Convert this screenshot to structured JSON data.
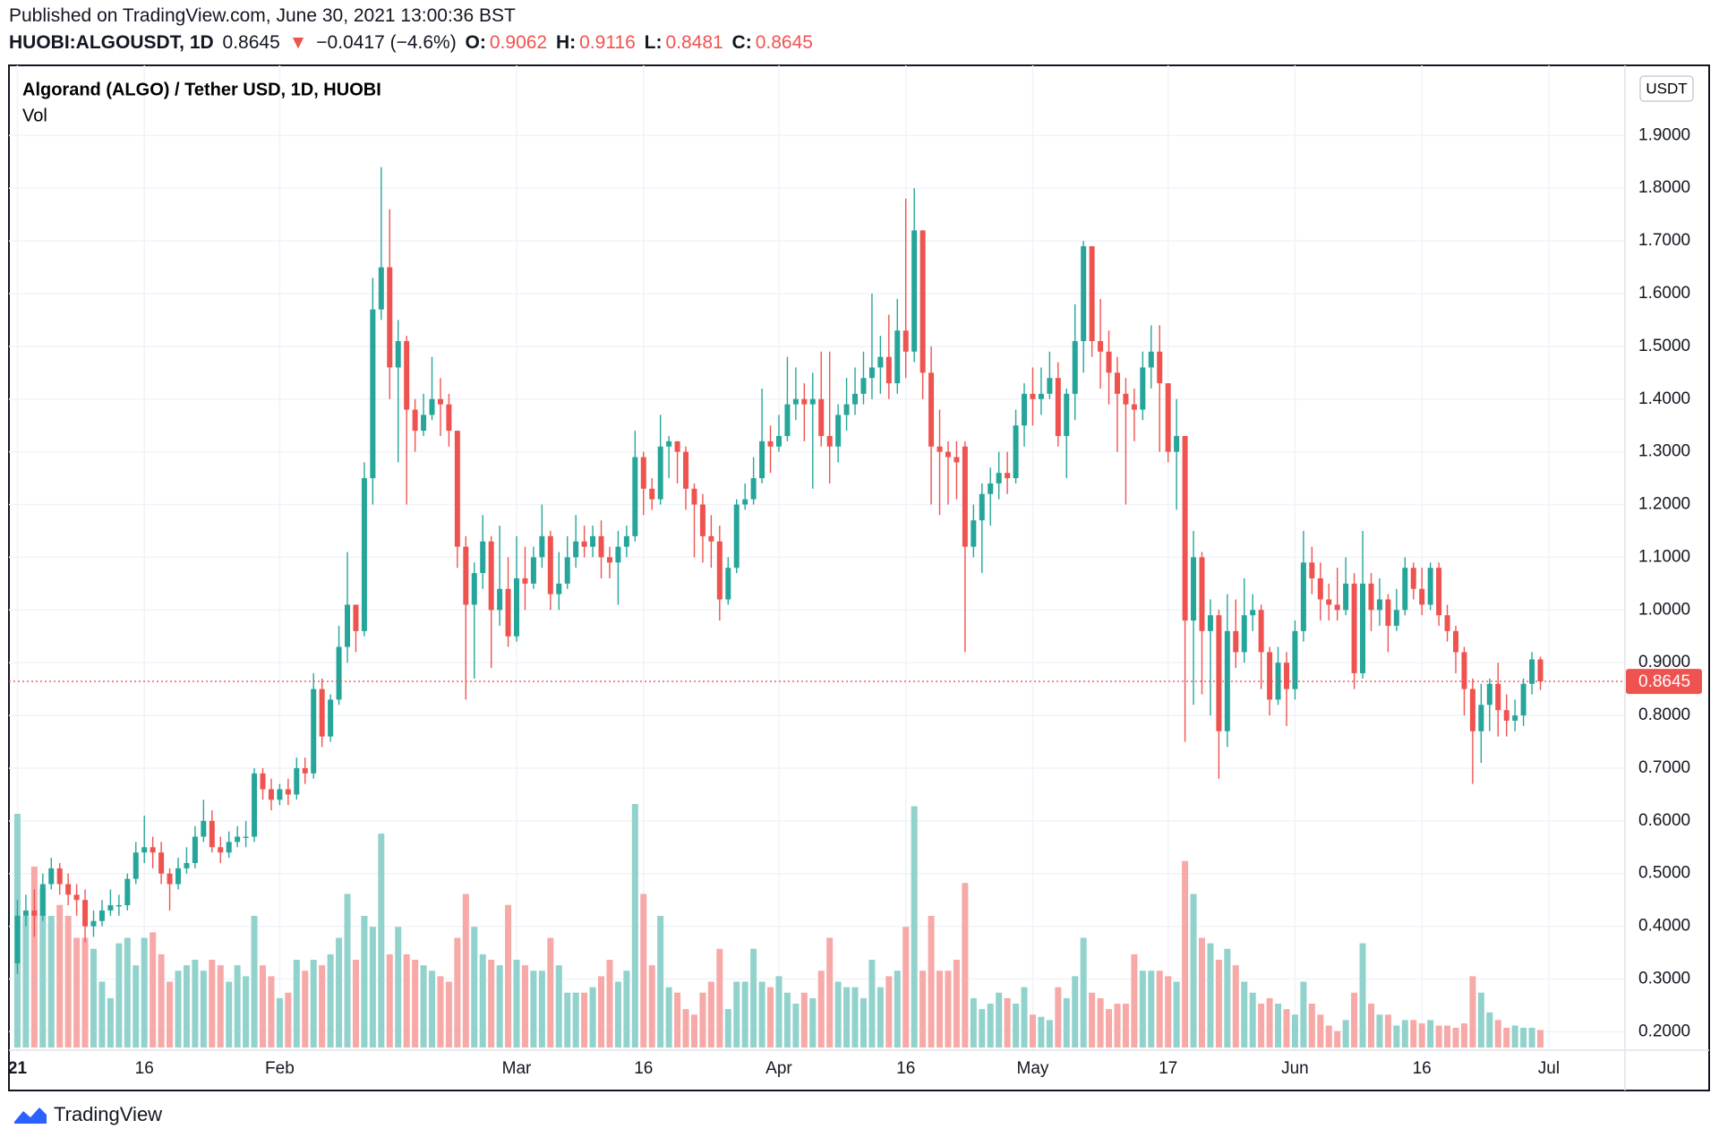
{
  "header": {
    "published": "Published on TradingView.com, June 30, 2021 13:00:36 BST",
    "symbol": "HUOBI:ALGOUSDT, 1D",
    "last": "0.8645",
    "arrow": "▼",
    "change": "−0.0417 (−4.6%)",
    "ohlc": [
      {
        "key": "O:",
        "value": "0.9062"
      },
      {
        "key": "H:",
        "value": "0.9116"
      },
      {
        "key": "L:",
        "value": "0.8481"
      },
      {
        "key": "C:",
        "value": "0.8645"
      }
    ]
  },
  "footer": {
    "brand": "TradingView"
  },
  "chart_data": {
    "type": "candlestick",
    "title": "Algorand (ALGO) / Tether USD, 1D, HUOBI",
    "volume_label": "Vol",
    "currency": "USDT",
    "up_color": "#26a69a",
    "down_color": "#ef5350",
    "volume_up_color": "#92d2cc",
    "volume_down_color": "#f7a9a7",
    "last_price": {
      "value": 0.8645,
      "label": "0.8645"
    },
    "xlim": [
      "2020-12-31",
      "2021-07-10"
    ],
    "xticks": [
      {
        "value": "2021-01-01",
        "label": "21"
      },
      {
        "value": "2021-01-16",
        "label": "16"
      },
      {
        "value": "2021-02-01",
        "label": "Feb"
      },
      {
        "value": "2021-03-01",
        "label": "Mar"
      },
      {
        "value": "2021-03-16",
        "label": "16"
      },
      {
        "value": "2021-04-01",
        "label": "Apr"
      },
      {
        "value": "2021-04-16",
        "label": "16"
      },
      {
        "value": "2021-05-01",
        "label": "May"
      },
      {
        "value": "2021-05-17",
        "label": "17"
      },
      {
        "value": "2021-06-01",
        "label": "Jun"
      },
      {
        "value": "2021-06-16",
        "label": "16"
      },
      {
        "value": "2021-07-01",
        "label": "Jul"
      }
    ],
    "ylim": [
      0.165,
      2.033
    ],
    "yticks": [
      {
        "value": 0.2,
        "label": "0.2000"
      },
      {
        "value": 0.3,
        "label": "0.3000"
      },
      {
        "value": 0.4,
        "label": "0.4000"
      },
      {
        "value": 0.5,
        "label": "0.5000"
      },
      {
        "value": 0.6,
        "label": "0.6000"
      },
      {
        "value": 0.7,
        "label": "0.7000"
      },
      {
        "value": 0.8,
        "label": "0.8000"
      },
      {
        "value": 0.9,
        "label": "0.9000"
      },
      {
        "value": 1.0,
        "label": "1.0000"
      },
      {
        "value": 1.1,
        "label": "1.1000"
      },
      {
        "value": 1.2,
        "label": "1.2000"
      },
      {
        "value": 1.3,
        "label": "1.3000"
      },
      {
        "value": 1.4,
        "label": "1.4000"
      },
      {
        "value": 1.5,
        "label": "1.5000"
      },
      {
        "value": 1.6,
        "label": "1.6000"
      },
      {
        "value": 1.7,
        "label": "1.7000"
      },
      {
        "value": 1.8,
        "label": "1.8000"
      },
      {
        "value": 1.9,
        "label": "1.9000"
      }
    ],
    "x": [
      "2021-01-01",
      "2021-01-02",
      "2021-01-03",
      "2021-01-04",
      "2021-01-05",
      "2021-01-06",
      "2021-01-07",
      "2021-01-08",
      "2021-01-09",
      "2021-01-10",
      "2021-01-11",
      "2021-01-12",
      "2021-01-13",
      "2021-01-14",
      "2021-01-15",
      "2021-01-16",
      "2021-01-17",
      "2021-01-18",
      "2021-01-19",
      "2021-01-20",
      "2021-01-21",
      "2021-01-22",
      "2021-01-23",
      "2021-01-24",
      "2021-01-25",
      "2021-01-26",
      "2021-01-27",
      "2021-01-28",
      "2021-01-29",
      "2021-01-30",
      "2021-01-31",
      "2021-02-01",
      "2021-02-02",
      "2021-02-03",
      "2021-02-04",
      "2021-02-05",
      "2021-02-06",
      "2021-02-07",
      "2021-02-08",
      "2021-02-09",
      "2021-02-10",
      "2021-02-11",
      "2021-02-12",
      "2021-02-13",
      "2021-02-14",
      "2021-02-15",
      "2021-02-16",
      "2021-02-17",
      "2021-02-18",
      "2021-02-19",
      "2021-02-20",
      "2021-02-21",
      "2021-02-22",
      "2021-02-23",
      "2021-02-24",
      "2021-02-25",
      "2021-02-26",
      "2021-02-27",
      "2021-02-28",
      "2021-03-01",
      "2021-03-02",
      "2021-03-03",
      "2021-03-04",
      "2021-03-05",
      "2021-03-06",
      "2021-03-07",
      "2021-03-08",
      "2021-03-09",
      "2021-03-10",
      "2021-03-11",
      "2021-03-12",
      "2021-03-13",
      "2021-03-14",
      "2021-03-15",
      "2021-03-16",
      "2021-03-17",
      "2021-03-18",
      "2021-03-19",
      "2021-03-20",
      "2021-03-21",
      "2021-03-22",
      "2021-03-23",
      "2021-03-24",
      "2021-03-25",
      "2021-03-26",
      "2021-03-27",
      "2021-03-28",
      "2021-03-29",
      "2021-03-30",
      "2021-03-31",
      "2021-04-01",
      "2021-04-02",
      "2021-04-03",
      "2021-04-04",
      "2021-04-05",
      "2021-04-06",
      "2021-04-07",
      "2021-04-08",
      "2021-04-09",
      "2021-04-10",
      "2021-04-11",
      "2021-04-12",
      "2021-04-13",
      "2021-04-14",
      "2021-04-15",
      "2021-04-16",
      "2021-04-17",
      "2021-04-18",
      "2021-04-19",
      "2021-04-20",
      "2021-04-21",
      "2021-04-22",
      "2021-04-23",
      "2021-04-24",
      "2021-04-25",
      "2021-04-26",
      "2021-04-27",
      "2021-04-28",
      "2021-04-29",
      "2021-04-30",
      "2021-05-01",
      "2021-05-02",
      "2021-05-03",
      "2021-05-04",
      "2021-05-05",
      "2021-05-06",
      "2021-05-07",
      "2021-05-08",
      "2021-05-09",
      "2021-05-10",
      "2021-05-11",
      "2021-05-12",
      "2021-05-13",
      "2021-05-14",
      "2021-05-15",
      "2021-05-16",
      "2021-05-17",
      "2021-05-18",
      "2021-05-19",
      "2021-05-20",
      "2021-05-21",
      "2021-05-22",
      "2021-05-23",
      "2021-05-24",
      "2021-05-25",
      "2021-05-26",
      "2021-05-27",
      "2021-05-28",
      "2021-05-29",
      "2021-05-30",
      "2021-05-31",
      "2021-06-01",
      "2021-06-02",
      "2021-06-03",
      "2021-06-04",
      "2021-06-05",
      "2021-06-06",
      "2021-06-07",
      "2021-06-08",
      "2021-06-09",
      "2021-06-10",
      "2021-06-11",
      "2021-06-12",
      "2021-06-13",
      "2021-06-14",
      "2021-06-15",
      "2021-06-16",
      "2021-06-17",
      "2021-06-18",
      "2021-06-19",
      "2021-06-20",
      "2021-06-21",
      "2021-06-22",
      "2021-06-23",
      "2021-06-24",
      "2021-06-25",
      "2021-06-26",
      "2021-06-27",
      "2021-06-28",
      "2021-06-29",
      "2021-06-30"
    ],
    "open": [
      0.33,
      0.42,
      0.43,
      0.42,
      0.48,
      0.51,
      0.48,
      0.46,
      0.45,
      0.4,
      0.41,
      0.43,
      0.44,
      0.44,
      0.49,
      0.54,
      0.55,
      0.54,
      0.5,
      0.48,
      0.51,
      0.52,
      0.57,
      0.6,
      0.55,
      0.54,
      0.56,
      0.57,
      0.57,
      0.69,
      0.66,
      0.64,
      0.66,
      0.65,
      0.7,
      0.69,
      0.85,
      0.76,
      0.83,
      0.93,
      1.01,
      0.96,
      1.25,
      1.57,
      1.65,
      1.46,
      1.51,
      1.38,
      1.34,
      1.37,
      1.4,
      1.39,
      1.34,
      1.12,
      1.01,
      1.07,
      1.13,
      1.0,
      1.04,
      0.95,
      1.06,
      1.05,
      1.1,
      1.14,
      1.03,
      1.05,
      1.1,
      1.13,
      1.12,
      1.14,
      1.1,
      1.09,
      1.12,
      1.14,
      1.29,
      1.23,
      1.21,
      1.31,
      1.32,
      1.3,
      1.23,
      1.2,
      1.14,
      1.13,
      1.02,
      1.08,
      1.2,
      1.21,
      1.25,
      1.32,
      1.31,
      1.33,
      1.39,
      1.4,
      1.39,
      1.4,
      1.33,
      1.31,
      1.37,
      1.39,
      1.41,
      1.44,
      1.46,
      1.48,
      1.43,
      1.53,
      1.49,
      1.72,
      1.45,
      1.31,
      1.3,
      1.29,
      1.31,
      1.12,
      1.17,
      1.22,
      1.24,
      1.26,
      1.25,
      1.35,
      1.41,
      1.4,
      1.41,
      1.44,
      1.33,
      1.41,
      1.51,
      1.69,
      1.51,
      1.49,
      1.45,
      1.41,
      1.39,
      1.38,
      1.46,
      1.49,
      1.43,
      1.3,
      1.33,
      0.98,
      1.1,
      0.96,
      0.99,
      0.77,
      0.96,
      0.92,
      0.99,
      1.0,
      0.92,
      0.83,
      0.9,
      0.85,
      0.96,
      1.09,
      1.06,
      1.02,
      1.01,
      1.0,
      1.05,
      0.88,
      1.05,
      1.0,
      1.02,
      0.97,
      1.0,
      1.08,
      1.04,
      1.01,
      1.08,
      0.99,
      0.96,
      0.92,
      0.85,
      0.77,
      0.82,
      0.86,
      0.81,
      0.79,
      0.8,
      0.86,
      0.9062
    ],
    "high": [
      0.45,
      0.46,
      0.47,
      0.5,
      0.53,
      0.52,
      0.5,
      0.48,
      0.47,
      0.43,
      0.45,
      0.47,
      0.46,
      0.5,
      0.56,
      0.61,
      0.57,
      0.56,
      0.51,
      0.53,
      0.55,
      0.59,
      0.64,
      0.62,
      0.57,
      0.58,
      0.59,
      0.6,
      0.7,
      0.7,
      0.68,
      0.67,
      0.68,
      0.72,
      0.72,
      0.88,
      0.87,
      0.84,
      0.97,
      1.11,
      1.01,
      1.28,
      1.63,
      1.84,
      1.76,
      1.55,
      1.52,
      1.4,
      1.41,
      1.48,
      1.44,
      1.41,
      1.34,
      1.14,
      1.09,
      1.18,
      1.14,
      1.16,
      1.1,
      1.14,
      1.12,
      1.12,
      1.2,
      1.15,
      1.11,
      1.14,
      1.18,
      1.16,
      1.16,
      1.17,
      1.12,
      1.15,
      1.16,
      1.34,
      1.3,
      1.25,
      1.37,
      1.33,
      1.32,
      1.31,
      1.24,
      1.22,
      1.18,
      1.16,
      1.1,
      1.21,
      1.24,
      1.29,
      1.42,
      1.35,
      1.37,
      1.48,
      1.46,
      1.43,
      1.45,
      1.49,
      1.49,
      1.39,
      1.44,
      1.46,
      1.49,
      1.6,
      1.52,
      1.56,
      1.59,
      1.78,
      1.8,
      1.72,
      1.5,
      1.38,
      1.32,
      1.32,
      1.32,
      1.2,
      1.24,
      1.27,
      1.3,
      1.3,
      1.38,
      1.43,
      1.46,
      1.46,
      1.49,
      1.47,
      1.42,
      1.58,
      1.7,
      1.69,
      1.59,
      1.53,
      1.48,
      1.44,
      1.42,
      1.49,
      1.54,
      1.54,
      1.43,
      1.4,
      1.33,
      1.15,
      1.11,
      1.02,
      1.0,
      1.03,
      1.02,
      1.06,
      1.03,
      1.01,
      0.93,
      0.93,
      0.92,
      0.98,
      1.15,
      1.12,
      1.09,
      1.05,
      1.08,
      1.1,
      1.07,
      1.15,
      1.07,
      1.06,
      1.03,
      1.04,
      1.1,
      1.09,
      1.08,
      1.09,
      1.09,
      1.01,
      0.97,
      0.93,
      0.87,
      0.86,
      0.87,
      0.9,
      0.84,
      0.83,
      0.87,
      0.92,
      0.9116
    ],
    "low": [
      0.31,
      0.4,
      0.38,
      0.41,
      0.47,
      0.46,
      0.44,
      0.42,
      0.37,
      0.38,
      0.4,
      0.42,
      0.42,
      0.43,
      0.48,
      0.52,
      0.51,
      0.48,
      0.43,
      0.47,
      0.5,
      0.51,
      0.56,
      0.54,
      0.52,
      0.53,
      0.55,
      0.55,
      0.56,
      0.64,
      0.62,
      0.63,
      0.63,
      0.64,
      0.67,
      0.68,
      0.74,
      0.75,
      0.82,
      0.9,
      0.92,
      0.95,
      1.2,
      1.55,
      1.4,
      1.28,
      1.2,
      1.3,
      1.33,
      1.36,
      1.33,
      1.31,
      1.08,
      0.83,
      0.87,
      1.04,
      0.89,
      0.97,
      0.93,
      0.94,
      1.0,
      1.04,
      1.08,
      1.0,
      1.0,
      1.04,
      1.08,
      1.1,
      1.1,
      1.06,
      1.06,
      1.01,
      1.1,
      1.13,
      1.18,
      1.19,
      1.2,
      1.25,
      1.24,
      1.19,
      1.1,
      1.09,
      1.08,
      0.98,
      1.01,
      1.07,
      1.19,
      1.2,
      1.24,
      1.26,
      1.3,
      1.32,
      1.36,
      1.32,
      1.23,
      1.31,
      1.24,
      1.28,
      1.34,
      1.37,
      1.39,
      1.4,
      1.41,
      1.4,
      1.41,
      1.44,
      1.47,
      1.4,
      1.2,
      1.18,
      1.2,
      1.21,
      0.92,
      1.1,
      1.07,
      1.16,
      1.21,
      1.22,
      1.24,
      1.31,
      1.35,
      1.37,
      1.4,
      1.31,
      1.25,
      1.36,
      1.45,
      1.48,
      1.42,
      1.39,
      1.3,
      1.2,
      1.32,
      1.36,
      1.42,
      1.3,
      1.28,
      1.19,
      0.75,
      0.82,
      0.84,
      0.8,
      0.68,
      0.74,
      0.89,
      0.9,
      0.96,
      0.85,
      0.8,
      0.82,
      0.78,
      0.83,
      0.94,
      1.03,
      0.98,
      0.98,
      0.98,
      0.99,
      0.85,
      0.87,
      0.96,
      0.97,
      0.92,
      0.96,
      0.99,
      1.02,
      0.99,
      1.0,
      0.97,
      0.94,
      0.88,
      0.8,
      0.67,
      0.71,
      0.77,
      0.76,
      0.76,
      0.77,
      0.78,
      0.84,
      0.8481
    ],
    "close": [
      0.42,
      0.43,
      0.42,
      0.48,
      0.51,
      0.48,
      0.46,
      0.45,
      0.4,
      0.41,
      0.43,
      0.44,
      0.44,
      0.49,
      0.54,
      0.55,
      0.54,
      0.5,
      0.48,
      0.51,
      0.52,
      0.57,
      0.6,
      0.55,
      0.54,
      0.56,
      0.57,
      0.57,
      0.69,
      0.66,
      0.64,
      0.66,
      0.65,
      0.7,
      0.69,
      0.85,
      0.76,
      0.83,
      0.93,
      1.01,
      0.96,
      1.25,
      1.57,
      1.65,
      1.46,
      1.51,
      1.38,
      1.34,
      1.37,
      1.4,
      1.39,
      1.34,
      1.12,
      1.01,
      1.07,
      1.13,
      1.0,
      1.04,
      0.95,
      1.06,
      1.05,
      1.1,
      1.14,
      1.03,
      1.05,
      1.1,
      1.13,
      1.12,
      1.14,
      1.1,
      1.09,
      1.12,
      1.14,
      1.29,
      1.23,
      1.21,
      1.31,
      1.32,
      1.3,
      1.23,
      1.2,
      1.14,
      1.13,
      1.02,
      1.08,
      1.2,
      1.21,
      1.25,
      1.32,
      1.31,
      1.33,
      1.39,
      1.4,
      1.39,
      1.4,
      1.33,
      1.31,
      1.37,
      1.39,
      1.41,
      1.44,
      1.46,
      1.48,
      1.43,
      1.53,
      1.49,
      1.72,
      1.45,
      1.31,
      1.3,
      1.29,
      1.28,
      1.12,
      1.17,
      1.22,
      1.24,
      1.26,
      1.25,
      1.35,
      1.41,
      1.4,
      1.41,
      1.44,
      1.33,
      1.41,
      1.51,
      1.69,
      1.51,
      1.49,
      1.45,
      1.41,
      1.39,
      1.38,
      1.46,
      1.49,
      1.43,
      1.3,
      1.33,
      0.98,
      1.1,
      0.96,
      0.99,
      0.77,
      0.96,
      0.92,
      0.99,
      1.0,
      0.92,
      0.83,
      0.9,
      0.85,
      0.96,
      1.09,
      1.06,
      1.02,
      1.01,
      1.0,
      1.05,
      0.88,
      1.05,
      1.0,
      1.02,
      0.97,
      1.0,
      1.08,
      1.04,
      1.01,
      1.08,
      0.99,
      0.96,
      0.92,
      0.85,
      0.77,
      0.82,
      0.86,
      0.81,
      0.79,
      0.8,
      0.86,
      0.9062,
      0.8645
    ],
    "volume": [
      213,
      120,
      165,
      145,
      120,
      130,
      120,
      100,
      100,
      90,
      60,
      45,
      95,
      100,
      75,
      100,
      105,
      85,
      60,
      70,
      75,
      80,
      70,
      80,
      75,
      60,
      75,
      65,
      120,
      75,
      65,
      45,
      50,
      80,
      70,
      80,
      75,
      85,
      100,
      140,
      80,
      120,
      110,
      195,
      85,
      110,
      85,
      80,
      75,
      70,
      65,
      60,
      100,
      140,
      110,
      85,
      80,
      75,
      130,
      80,
      75,
      70,
      70,
      100,
      75,
      50,
      50,
      50,
      55,
      65,
      80,
      60,
      70,
      222,
      140,
      75,
      120,
      55,
      50,
      35,
      30,
      50,
      60,
      90,
      35,
      60,
      60,
      90,
      60,
      55,
      65,
      50,
      40,
      50,
      45,
      70,
      100,
      60,
      55,
      55,
      45,
      80,
      55,
      65,
      70,
      110,
      220,
      70,
      120,
      70,
      70,
      80,
      150,
      45,
      35,
      40,
      50,
      45,
      40,
      55,
      30,
      28,
      25,
      55,
      45,
      65,
      100,
      50,
      45,
      35,
      40,
      40,
      85,
      70,
      70,
      70,
      65,
      60,
      170,
      140,
      100,
      95,
      80,
      90,
      75,
      60,
      50,
      40,
      45,
      40,
      35,
      30,
      60,
      40,
      30,
      20,
      15,
      25,
      50,
      95,
      40,
      30,
      30,
      20,
      25,
      25,
      22,
      25,
      20,
      20,
      18,
      22,
      65,
      50,
      32,
      25,
      18,
      20,
      18,
      18,
      16
    ]
  }
}
